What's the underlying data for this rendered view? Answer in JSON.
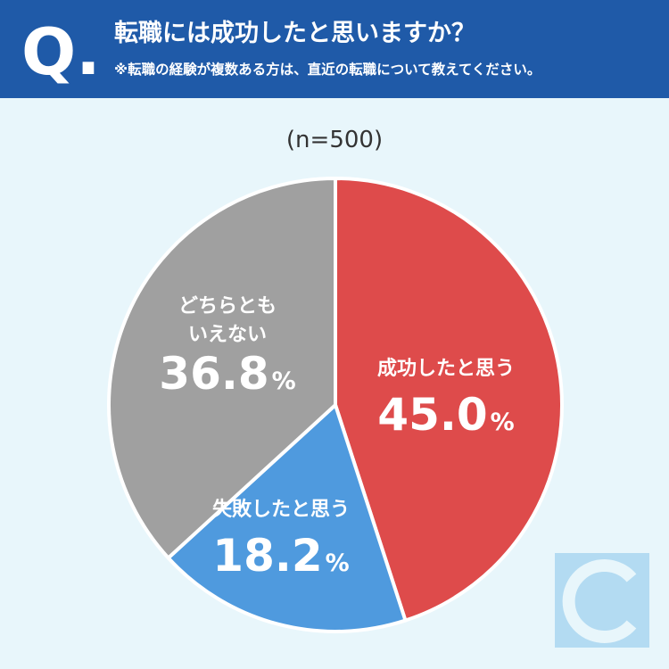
{
  "header": {
    "q_mark": "Q.",
    "title": "転職には成功したと思いますか？",
    "subtitle": "※転職の経験が複数ある方は、直近の転職について教えてください。"
  },
  "sample_size": "(n=500)",
  "chart_data": {
    "type": "pie",
    "unit": "%",
    "slices": [
      {
        "label_lines": [
          "成功したと思う"
        ],
        "value": 45.0,
        "value_text": "45.0",
        "color": "#de4b4b"
      },
      {
        "label_lines": [
          "失敗したと思う"
        ],
        "value": 18.2,
        "value_text": "18.2",
        "color": "#4f9ade"
      },
      {
        "label_lines": [
          "どちらとも",
          "いえない"
        ],
        "value": 36.8,
        "value_text": "36.8",
        "color": "#a0a0a0"
      }
    ]
  },
  "logo": {
    "color": "#a9d6f0"
  }
}
